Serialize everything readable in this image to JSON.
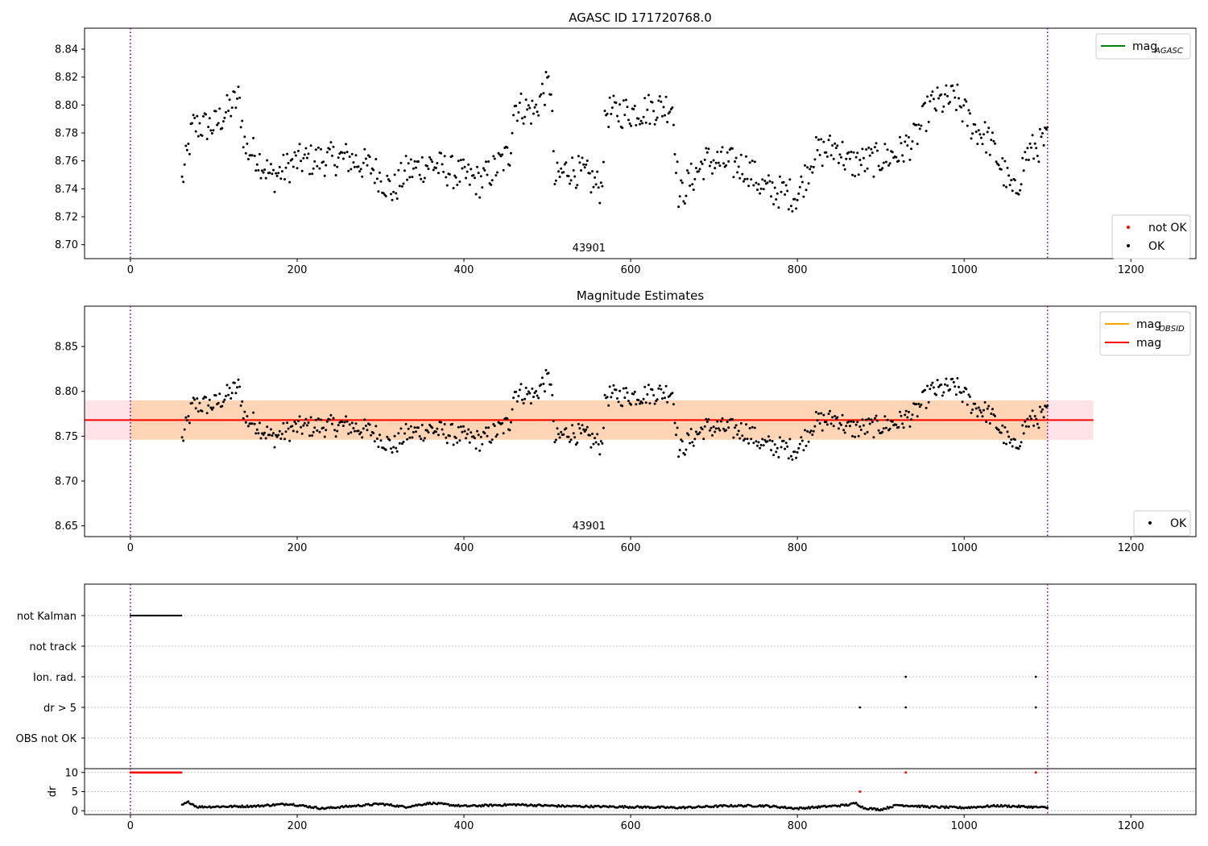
{
  "chart_data": [
    {
      "type": "scatter",
      "title": "AGASC ID 171720768.0",
      "xlim": [
        -55,
        1278
      ],
      "ylim": [
        8.69,
        8.855
      ],
      "xticks": [
        0,
        200,
        400,
        600,
        800,
        1000,
        1200
      ],
      "yticks": [
        8.7,
        8.72,
        8.74,
        8.76,
        8.78,
        8.8,
        8.82,
        8.84
      ],
      "obsid_label": "43901",
      "vlines": [
        0,
        1100
      ],
      "legend_upper": [
        {
          "name": "mag_AGASC",
          "text": "mag",
          "sub": "AGASC",
          "color": "#008000",
          "kind": "line"
        }
      ],
      "legend_lower": [
        {
          "name": "not-ok",
          "text": "not OK",
          "color": "#ff0000",
          "kind": "point"
        },
        {
          "name": "ok",
          "text": "OK",
          "color": "#000000",
          "kind": "point"
        }
      ],
      "series": [
        {
          "name": "OK",
          "x_start": 62,
          "x_end": 1100,
          "step": 1.5,
          "trend": [
            [
              62,
              8.745
            ],
            [
              75,
              8.785
            ],
            [
              100,
              8.785
            ],
            [
              130,
              8.805
            ],
            [
              138,
              8.768
            ],
            [
              150,
              8.765
            ],
            [
              170,
              8.748
            ],
            [
              200,
              8.76
            ],
            [
              260,
              8.762
            ],
            [
              290,
              8.755
            ],
            [
              315,
              8.738
            ],
            [
              330,
              8.752
            ],
            [
              360,
              8.758
            ],
            [
              395,
              8.75
            ],
            [
              420,
              8.745
            ],
            [
              440,
              8.756
            ],
            [
              455,
              8.765
            ],
            [
              460,
              8.8
            ],
            [
              485,
              8.795
            ],
            [
              495,
              8.81
            ],
            [
              505,
              8.815
            ],
            [
              508,
              8.745
            ],
            [
              525,
              8.755
            ],
            [
              545,
              8.75
            ],
            [
              565,
              8.74
            ],
            [
              570,
              8.795
            ],
            [
              600,
              8.795
            ],
            [
              650,
              8.8
            ],
            [
              658,
              8.733
            ],
            [
              670,
              8.745
            ],
            [
              690,
              8.76
            ],
            [
              720,
              8.758
            ],
            [
              740,
              8.755
            ],
            [
              760,
              8.74
            ],
            [
              800,
              8.735
            ],
            [
              820,
              8.765
            ],
            [
              850,
              8.77
            ],
            [
              860,
              8.758
            ],
            [
              890,
              8.76
            ],
            [
              920,
              8.765
            ],
            [
              940,
              8.775
            ],
            [
              960,
              8.8
            ],
            [
              990,
              8.805
            ],
            [
              1010,
              8.785
            ],
            [
              1030,
              8.775
            ],
            [
              1045,
              8.755
            ],
            [
              1060,
              8.735
            ],
            [
              1075,
              8.765
            ],
            [
              1100,
              8.775
            ]
          ]
        }
      ]
    },
    {
      "type": "scatter",
      "title": "Magnitude Estimates",
      "xlim": [
        -55,
        1278
      ],
      "ylim": [
        8.638,
        8.895
      ],
      "xticks": [
        0,
        200,
        400,
        600,
        800,
        1000,
        1200
      ],
      "yticks": [
        8.65,
        8.7,
        8.75,
        8.8,
        8.85
      ],
      "obsid_label": "43901",
      "vlines": [
        0,
        1100
      ],
      "mag": 8.768,
      "mag_band": [
        8.746,
        8.79
      ],
      "mag_band_x": [
        -55,
        1155
      ],
      "obsid_band_x": [
        0,
        1100
      ],
      "legend_upper": [
        {
          "name": "mag_OBSID",
          "text": "mag",
          "sub": "OBSID",
          "color": "#ffa500",
          "kind": "line"
        },
        {
          "name": "mag",
          "text": "mag",
          "color": "#ff0000",
          "kind": "line"
        }
      ],
      "legend_lower": [
        {
          "name": "ok",
          "text": "OK",
          "color": "#000000",
          "kind": "point"
        }
      ]
    },
    {
      "type": "scatter",
      "title": "",
      "xlim": [
        -55,
        1278
      ],
      "xticks": [
        0,
        200,
        400,
        600,
        800,
        1000,
        1200
      ],
      "vlines": [
        0,
        1100
      ],
      "categories": [
        "not Kalman",
        "not track",
        "Ion. rad.",
        "dr > 5",
        "OBS not OK"
      ],
      "flags": {
        "not Kalman": {
          "x_start": 0,
          "x_end": 62
        },
        "not track": {
          "x": []
        },
        "Ion. rad.": {
          "x": [
            930,
            1086
          ]
        },
        "dr > 5": {
          "x": [
            875,
            930,
            1086
          ]
        },
        "OBS not OK": {
          "x": []
        }
      }
    },
    {
      "type": "scatter",
      "ylabel": "dr",
      "xlim": [
        -55,
        1278
      ],
      "ylim": [
        -1,
        11
      ],
      "yticks": [
        0,
        5,
        10
      ],
      "xticks": [
        0,
        200,
        400,
        600,
        800,
        1000,
        1200
      ],
      "vlines": [
        0,
        1100
      ],
      "series": [
        {
          "name": "dr not Kalman",
          "color": "#ff0000",
          "x_start": 0,
          "x_end": 62,
          "value": 10
        },
        {
          "name": "dr flagged",
          "color": "#ff0000",
          "x": [
            875,
            930,
            1086
          ],
          "values": [
            5,
            10,
            10
          ]
        },
        {
          "name": "dr OK",
          "color": "#000000",
          "x_start": 62,
          "x_end": 1100,
          "trend": [
            [
              62,
              1.5
            ],
            [
              70,
              2.3
            ],
            [
              80,
              1.0
            ],
            [
              150,
              1.2
            ],
            [
              190,
              1.8
            ],
            [
              230,
              0.6
            ],
            [
              300,
              1.8
            ],
            [
              330,
              1.0
            ],
            [
              360,
              2.0
            ],
            [
              400,
              1.2
            ],
            [
              460,
              1.6
            ],
            [
              520,
              1.2
            ],
            [
              600,
              1.0
            ],
            [
              660,
              0.8
            ],
            [
              720,
              1.3
            ],
            [
              760,
              1.3
            ],
            [
              800,
              0.6
            ],
            [
              860,
              1.5
            ],
            [
              870,
              2.0
            ],
            [
              880,
              0.7
            ],
            [
              900,
              0.3
            ],
            [
              920,
              1.5
            ],
            [
              960,
              1.0
            ],
            [
              1000,
              0.8
            ],
            [
              1040,
              1.3
            ],
            [
              1080,
              1.0
            ],
            [
              1100,
              0.8
            ]
          ]
        }
      ]
    }
  ]
}
